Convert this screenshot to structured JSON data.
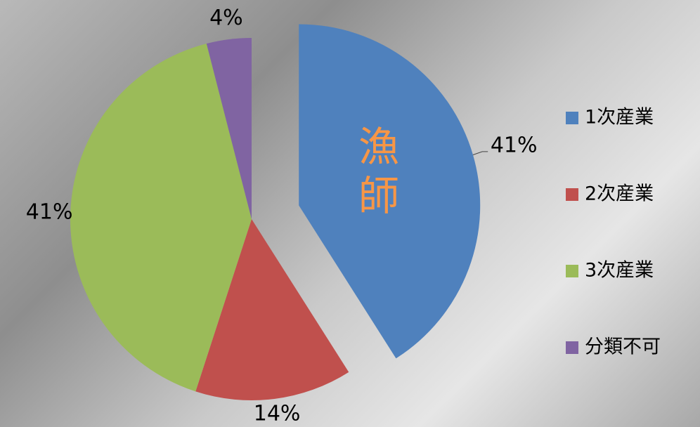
{
  "chart_data": {
    "type": "pie",
    "categories": [
      "1次産業",
      "2次産業",
      "3次産業",
      "分類不可"
    ],
    "values": [
      41,
      14,
      41,
      4
    ],
    "value_labels": [
      "41%",
      "14%",
      "41%",
      "4%"
    ],
    "colors": [
      "#4f81bd",
      "#c0504d",
      "#9bbb59",
      "#8064a2"
    ],
    "exploded": [
      0
    ],
    "annotation": "漁師",
    "legend": "right"
  }
}
